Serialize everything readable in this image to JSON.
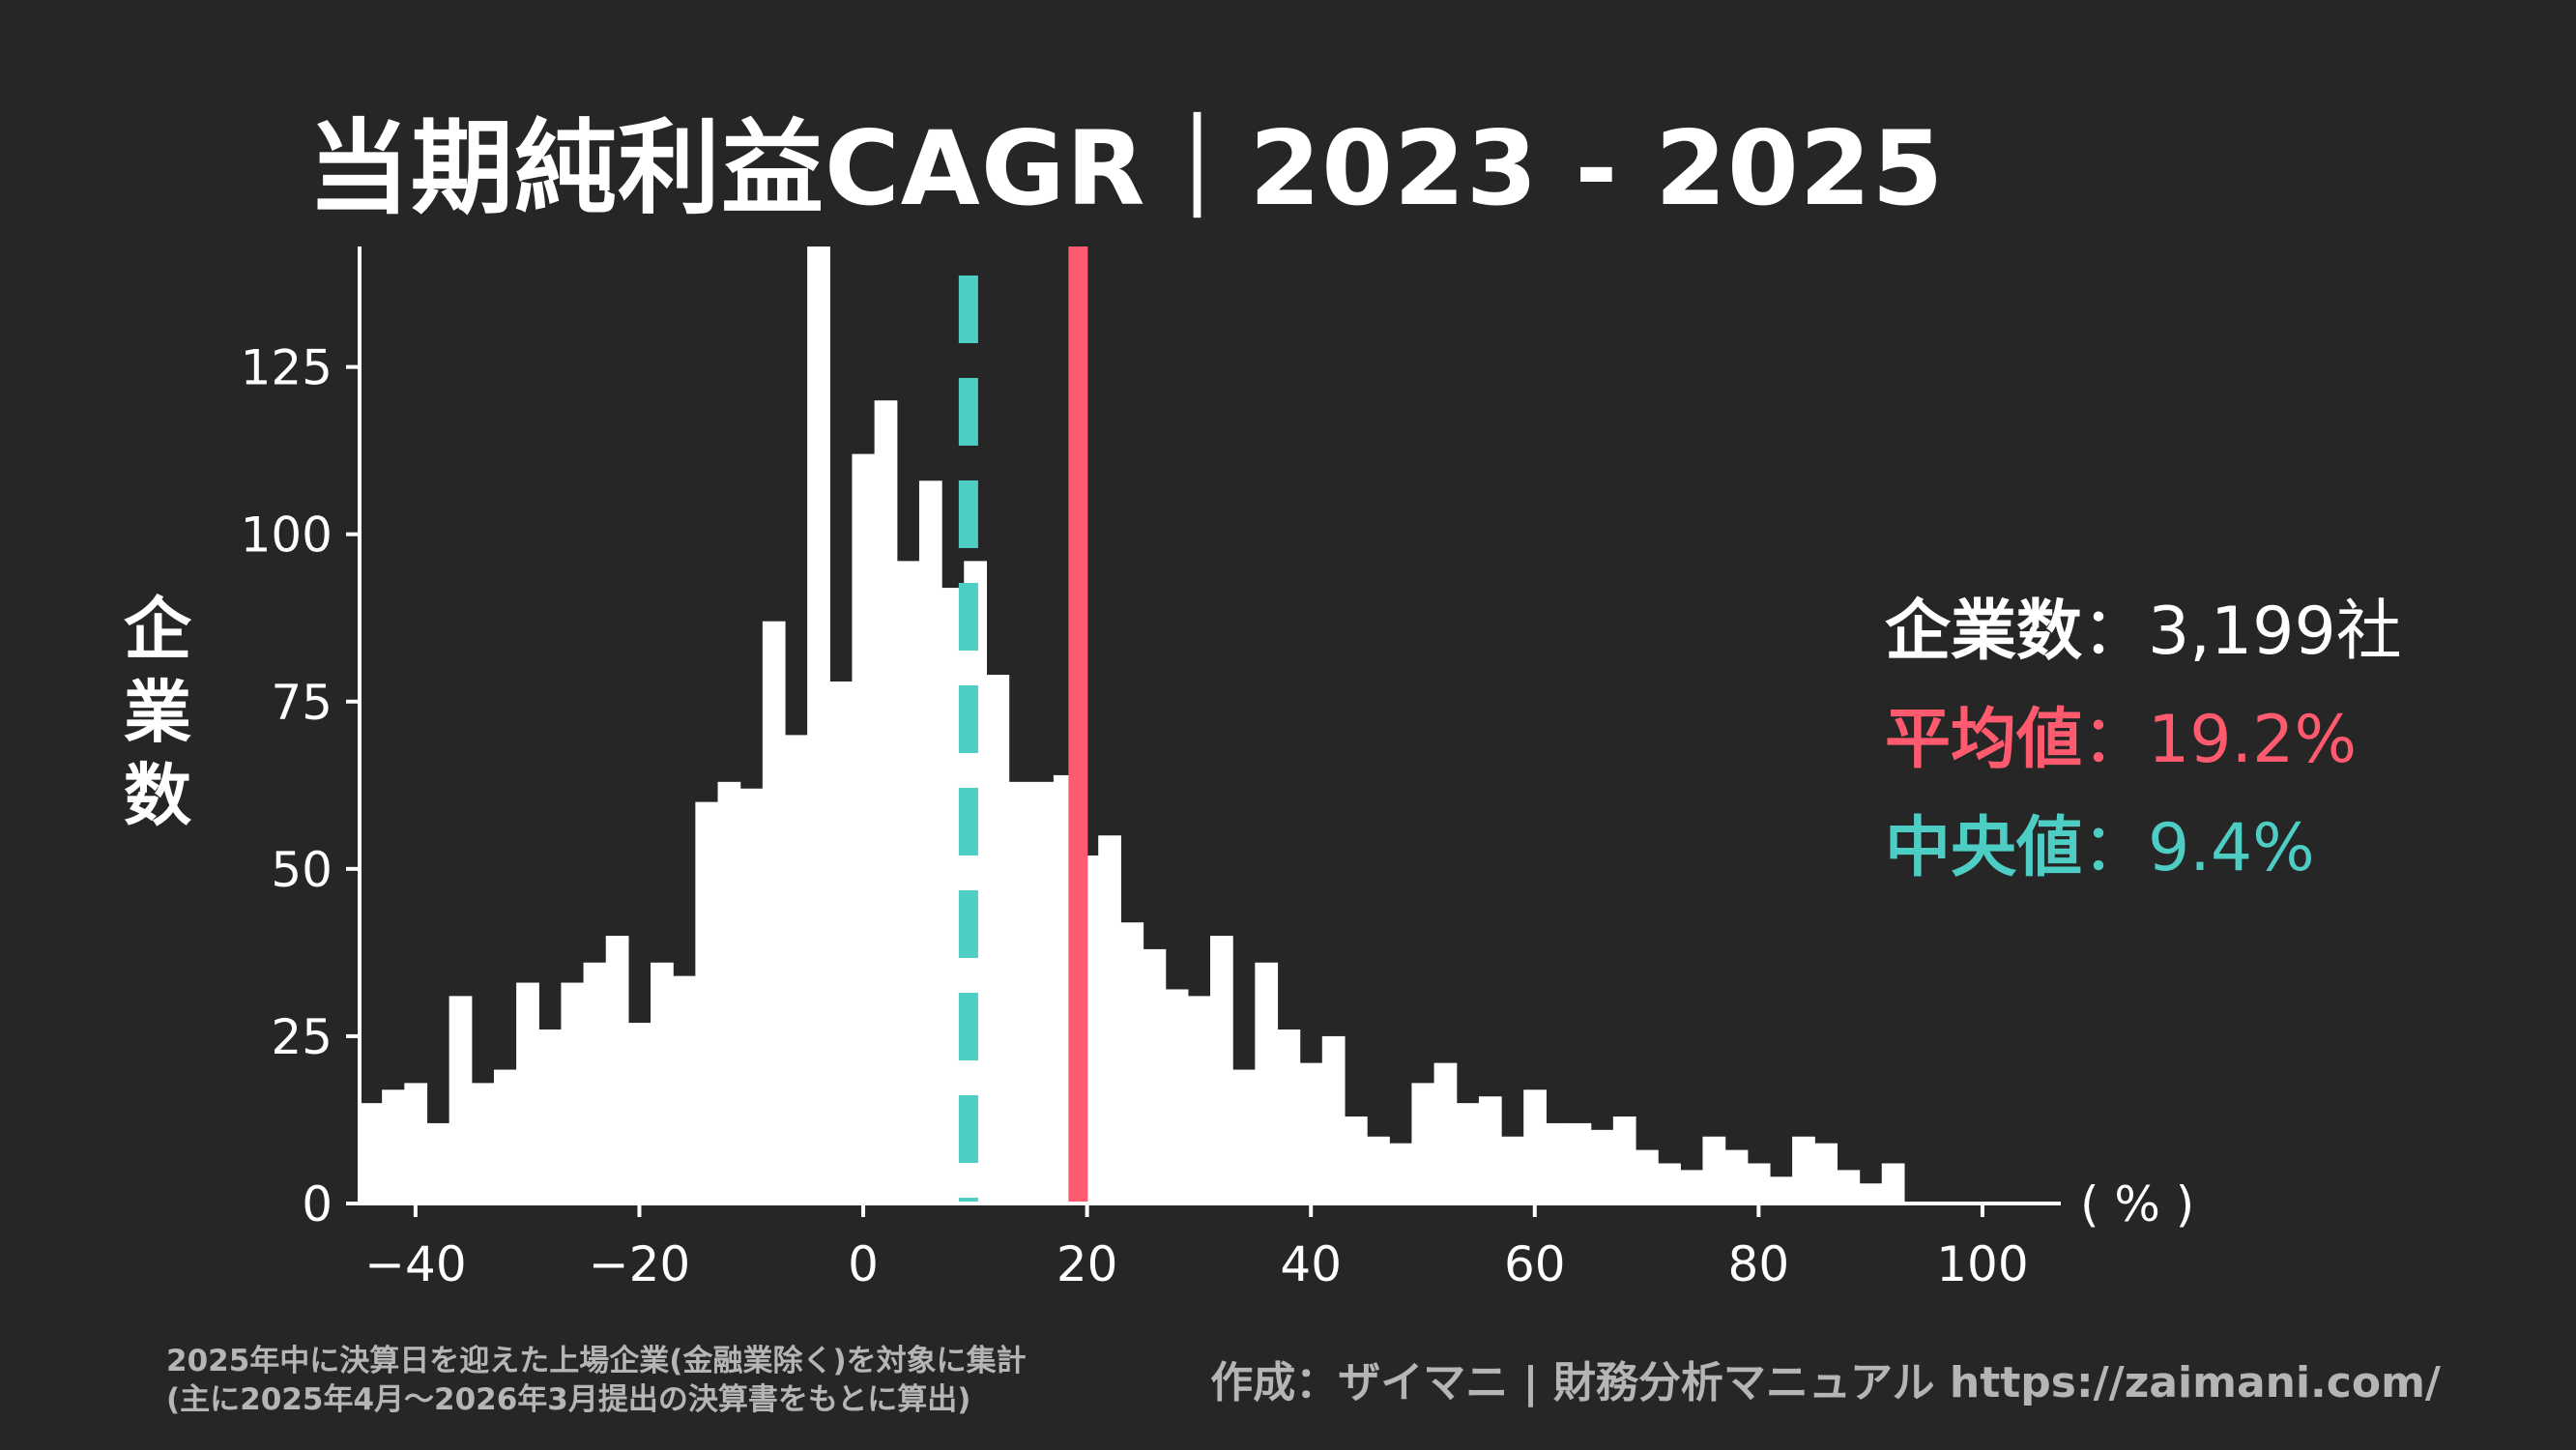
{
  "title": "当期純利益CAGR｜2023 - 2025",
  "y_label_chars": [
    "企",
    "業",
    "数"
  ],
  "stats": {
    "count_label": "企業数",
    "count_value": "3,199社",
    "mean_label": "平均値",
    "mean_value": "19.2%",
    "median_label": "中央値",
    "median_value": "9.4%",
    "separator": "："
  },
  "footnote": {
    "line1": "2025年中に決算日を迎えた上場企業(金融業除く)を対象に集計",
    "line2": "(主に2025年4月～2026年3月提出の決算書をもとに算出)"
  },
  "credit": "作成：ザイマニ | 財務分析マニュアル https://zaimani.com/",
  "colors": {
    "background": "#262626",
    "bars": "#ffffff",
    "mean": "#ff5a6e",
    "median": "#4ecdc4",
    "note": "#b5b5b5"
  },
  "chart_data": {
    "type": "bar",
    "title": "当期純利益CAGR｜2023 - 2025",
    "xlabel": "( % )",
    "ylabel": "企業数",
    "x_bin_start": -45,
    "x_bin_width": 2,
    "xlim": [
      -45,
      107
    ],
    "ylim": [
      0,
      143
    ],
    "x_ticks": [
      -40,
      -20,
      0,
      20,
      40,
      60,
      80,
      100
    ],
    "x_tick_labels": [
      "−40",
      "−20",
      "0",
      "20",
      "40",
      "60",
      "80",
      "100"
    ],
    "y_ticks": [
      0,
      25,
      50,
      75,
      100,
      125
    ],
    "y_tick_labels": [
      "0",
      "25",
      "50",
      "75",
      "100",
      "125"
    ],
    "values": [
      15,
      17,
      18,
      12,
      31,
      18,
      20,
      33,
      26,
      33,
      36,
      40,
      27,
      36,
      34,
      60,
      63,
      62,
      87,
      70,
      150,
      78,
      112,
      120,
      96,
      108,
      92,
      96,
      79,
      63,
      63,
      64,
      52,
      55,
      42,
      38,
      32,
      31,
      40,
      20,
      36,
      26,
      21,
      25,
      13,
      10,
      9,
      18,
      21,
      15,
      16,
      10,
      17,
      12,
      12,
      11,
      13,
      8,
      6,
      5,
      10,
      8,
      6,
      4,
      10,
      9,
      5,
      3,
      6
    ],
    "mean": 19.2,
    "median": 9.4,
    "grid": false,
    "legend": "right"
  }
}
